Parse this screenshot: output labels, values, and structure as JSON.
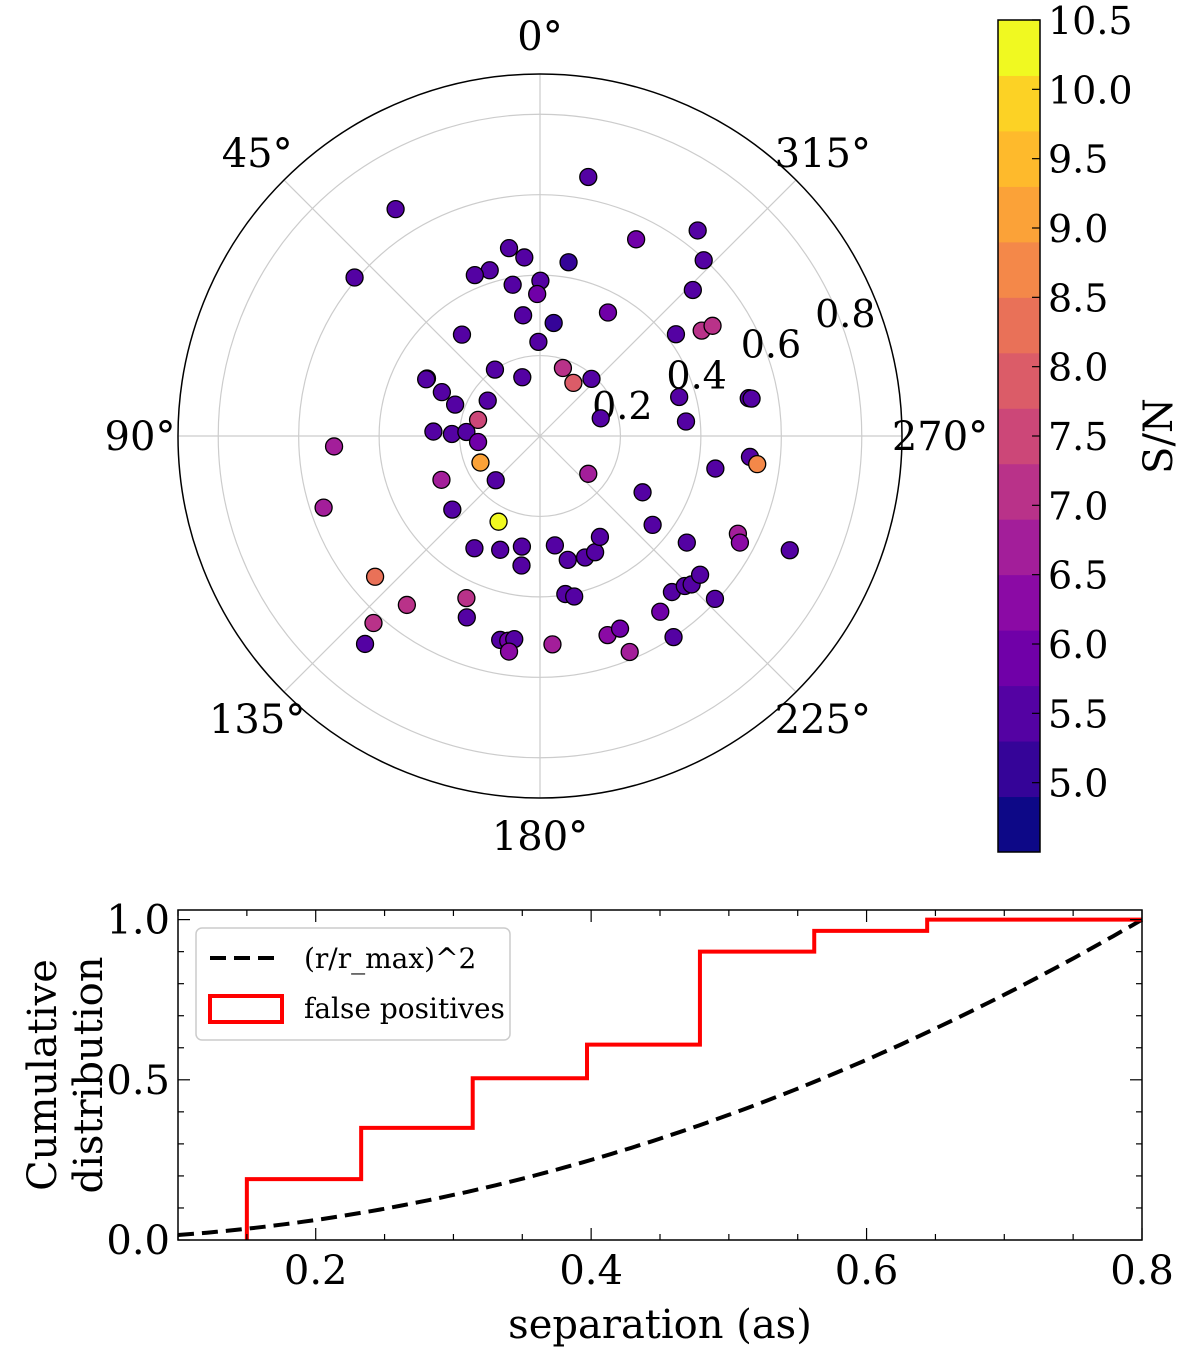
{
  "chart_data": [
    {
      "type": "scatter",
      "subtype": "polar",
      "title": "",
      "angle_direction": "counterclockwise",
      "theta_zero": "top",
      "angle_tick_labels": [
        "0°",
        "45°",
        "90°",
        "135°",
        "180°",
        "225°",
        "270°",
        "315°"
      ],
      "angle_ticks_deg": [
        0,
        45,
        90,
        135,
        180,
        225,
        270,
        315
      ],
      "radial_tick_labels": [
        "0.2",
        "0.4",
        "0.6",
        "0.8"
      ],
      "radial_ticks": [
        0.2,
        0.4,
        0.6,
        0.8
      ],
      "rlim": [
        0,
        0.9
      ],
      "grid": true,
      "colormap": "plasma",
      "colorbar": {
        "label": "S/N",
        "range": [
          4.5,
          10.5
        ],
        "tick_labels": [
          "5.0",
          "5.5",
          "6.0",
          "6.5",
          "7.0",
          "7.5",
          "8.0",
          "8.5",
          "9.0",
          "9.5",
          "10.0",
          "10.5"
        ],
        "ticks": [
          5.0,
          5.5,
          6.0,
          6.5,
          7.0,
          7.5,
          8.0,
          8.5,
          9.0,
          9.5,
          10.0,
          10.5
        ],
        "band_colors": [
          "#0d0887",
          "#350498",
          "#5402a3",
          "#7000a8",
          "#8b0aa5",
          "#a31e9a",
          "#b93289",
          "#cc4778",
          "#db5c68",
          "#e97158",
          "#f48849",
          "#fba238",
          "#feba2c",
          "#fcd225",
          "#f0f921"
        ]
      },
      "points": [
        {
          "x": 0.12,
          "y": 0.644,
          "snr": 5.4
        },
        {
          "x": 0.392,
          "y": 0.511,
          "snr": 5.5
        },
        {
          "x": 0.239,
          "y": 0.489,
          "snr": 6.1
        },
        {
          "x": -0.039,
          "y": 0.444,
          "snr": 5.4
        },
        {
          "x": -0.077,
          "y": 0.467,
          "snr": 5.4
        },
        {
          "x": -0.125,
          "y": 0.412,
          "snr": 5.4
        },
        {
          "x": -0.162,
          "y": 0.4,
          "snr": 5.5
        },
        {
          "x": 0.071,
          "y": 0.432,
          "snr": 5.3
        },
        {
          "x": 0.001,
          "y": 0.386,
          "snr": 5.4
        },
        {
          "x": -0.068,
          "y": 0.376,
          "snr": 5.4
        },
        {
          "x": -0.007,
          "y": 0.353,
          "snr": 6.0
        },
        {
          "x": -0.042,
          "y": 0.3,
          "snr": 5.5
        },
        {
          "x": 0.407,
          "y": 0.437,
          "snr": 5.5
        },
        {
          "x": 0.38,
          "y": 0.363,
          "snr": 5.4
        },
        {
          "x": -0.359,
          "y": 0.564,
          "snr": 5.4
        },
        {
          "x": -0.461,
          "y": 0.394,
          "snr": 5.4
        },
        {
          "x": -0.194,
          "y": 0.252,
          "snr": 5.5
        },
        {
          "x": 0.169,
          "y": 0.307,
          "snr": 5.8
        },
        {
          "x": 0.034,
          "y": 0.281,
          "snr": 5.3
        },
        {
          "x": -0.004,
          "y": 0.234,
          "snr": 5.4
        },
        {
          "x": 0.338,
          "y": 0.253,
          "snr": 5.4
        },
        {
          "x": 0.402,
          "y": 0.262,
          "snr": 7.3
        },
        {
          "x": 0.429,
          "y": 0.274,
          "snr": 7.2
        },
        {
          "x": -0.112,
          "y": 0.165,
          "snr": 5.4
        },
        {
          "x": -0.281,
          "y": 0.143,
          "snr": 5.4
        },
        {
          "x": -0.283,
          "y": 0.141,
          "snr": 5.4
        },
        {
          "x": -0.244,
          "y": 0.109,
          "snr": 5.5
        },
        {
          "x": -0.211,
          "y": 0.078,
          "snr": 5.4
        },
        {
          "x": -0.13,
          "y": 0.088,
          "snr": 5.4
        },
        {
          "x": -0.044,
          "y": 0.146,
          "snr": 5.4
        },
        {
          "x": 0.057,
          "y": 0.169,
          "snr": 7.0
        },
        {
          "x": 0.083,
          "y": 0.132,
          "snr": 7.9
        },
        {
          "x": 0.128,
          "y": 0.142,
          "snr": 5.4
        },
        {
          "x": 0.346,
          "y": 0.097,
          "snr": 5.4
        },
        {
          "x": 0.519,
          "y": 0.094,
          "snr": 5.4
        },
        {
          "x": 0.526,
          "y": 0.093,
          "snr": 5.4
        },
        {
          "x": -0.154,
          "y": 0.04,
          "snr": 7.4
        },
        {
          "x": -0.219,
          "y": 0.005,
          "snr": 5.4
        },
        {
          "x": -0.265,
          "y": 0.011,
          "snr": 5.4
        },
        {
          "x": -0.183,
          "y": 0.01,
          "snr": 5.5
        },
        {
          "x": -0.154,
          "y": -0.015,
          "snr": 6.0
        },
        {
          "x": 0.151,
          "y": 0.044,
          "snr": 5.4
        },
        {
          "x": 0.363,
          "y": 0.036,
          "snr": 5.5
        },
        {
          "x": 0.522,
          "y": -0.052,
          "snr": 5.4
        },
        {
          "x": 0.54,
          "y": -0.07,
          "snr": 8.6
        },
        {
          "x": 0.436,
          "y": -0.081,
          "snr": 5.4
        },
        {
          "x": -0.512,
          "y": -0.026,
          "snr": 6.8
        },
        {
          "x": -0.148,
          "y": -0.066,
          "snr": 8.9
        },
        {
          "x": -0.245,
          "y": -0.109,
          "snr": 6.7
        },
        {
          "x": -0.11,
          "y": -0.11,
          "snr": 5.4
        },
        {
          "x": 0.12,
          "y": -0.094,
          "snr": 6.5
        },
        {
          "x": 0.255,
          "y": -0.14,
          "snr": 5.4
        },
        {
          "x": -0.538,
          "y": -0.178,
          "snr": 6.8
        },
        {
          "x": -0.218,
          "y": -0.183,
          "snr": 5.4
        },
        {
          "x": -0.103,
          "y": -0.213,
          "snr": 10.4
        },
        {
          "x": -0.163,
          "y": -0.279,
          "snr": 5.5
        },
        {
          "x": -0.099,
          "y": -0.283,
          "snr": 5.4
        },
        {
          "x": -0.045,
          "y": -0.275,
          "snr": 5.5
        },
        {
          "x": 0.037,
          "y": -0.272,
          "snr": 5.4
        },
        {
          "x": 0.069,
          "y": -0.308,
          "snr": 5.4
        },
        {
          "x": 0.112,
          "y": -0.302,
          "snr": 5.4
        },
        {
          "x": 0.137,
          "y": -0.289,
          "snr": 5.4
        },
        {
          "x": 0.149,
          "y": -0.251,
          "snr": 5.5
        },
        {
          "x": -0.046,
          "y": -0.322,
          "snr": 5.4
        },
        {
          "x": 0.28,
          "y": -0.221,
          "snr": 5.4
        },
        {
          "x": 0.365,
          "y": -0.265,
          "snr": 5.4
        },
        {
          "x": 0.492,
          "y": -0.243,
          "snr": 6.5
        },
        {
          "x": 0.497,
          "y": -0.265,
          "snr": 6.2
        },
        {
          "x": 0.621,
          "y": -0.284,
          "snr": 5.4
        },
        {
          "x": -0.41,
          "y": -0.35,
          "snr": 8.3
        },
        {
          "x": -0.331,
          "y": -0.42,
          "snr": 7.3
        },
        {
          "x": -0.414,
          "y": -0.465,
          "snr": 7.2
        },
        {
          "x": -0.435,
          "y": -0.517,
          "snr": 5.4
        },
        {
          "x": -0.183,
          "y": -0.403,
          "snr": 7.0
        },
        {
          "x": -0.182,
          "y": -0.451,
          "snr": 5.4
        },
        {
          "x": -0.099,
          "y": -0.507,
          "snr": 5.4
        },
        {
          "x": -0.079,
          "y": -0.509,
          "snr": 6.0
        },
        {
          "x": -0.064,
          "y": -0.505,
          "snr": 5.4
        },
        {
          "x": -0.077,
          "y": -0.536,
          "snr": 6.2
        },
        {
          "x": 0.031,
          "y": -0.518,
          "snr": 6.5
        },
        {
          "x": 0.063,
          "y": -0.393,
          "snr": 5.4
        },
        {
          "x": 0.085,
          "y": -0.399,
          "snr": 5.4
        },
        {
          "x": 0.168,
          "y": -0.495,
          "snr": 6.4
        },
        {
          "x": 0.199,
          "y": -0.479,
          "snr": 5.8
        },
        {
          "x": 0.223,
          "y": -0.537,
          "snr": 6.5
        },
        {
          "x": 0.299,
          "y": -0.437,
          "snr": 5.8
        },
        {
          "x": 0.328,
          "y": -0.388,
          "snr": 5.5
        },
        {
          "x": 0.36,
          "y": -0.373,
          "snr": 5.4
        },
        {
          "x": 0.332,
          "y": -0.5,
          "snr": 5.4
        },
        {
          "x": 0.377,
          "y": -0.369,
          "snr": 5.4
        },
        {
          "x": 0.398,
          "y": -0.345,
          "snr": 5.4
        },
        {
          "x": 0.435,
          "y": -0.405,
          "snr": 5.4
        }
      ]
    },
    {
      "type": "line",
      "title": "",
      "xlabel": "separation (as)",
      "ylabel": "Cumulative\ndistribution",
      "xlim": [
        0.1,
        0.8
      ],
      "ylim": [
        0,
        1.03
      ],
      "x_tick_labels": [
        "0.2",
        "0.4",
        "0.6",
        "0.8"
      ],
      "x_ticks": [
        0.2,
        0.4,
        0.6,
        0.8
      ],
      "y_tick_labels": [
        "0.0",
        "0.5",
        "1.0"
      ],
      "y_ticks": [
        0.0,
        0.5,
        1.0
      ],
      "legend": "upper-left",
      "series": [
        {
          "name": "(r/r_max)^2",
          "style": "dashed",
          "color": "#000000",
          "formula": "(x/0.8)^2",
          "x": [
            0.1,
            0.2,
            0.3,
            0.4,
            0.5,
            0.6,
            0.7,
            0.8
          ],
          "values": [
            0.016,
            0.063,
            0.141,
            0.25,
            0.391,
            0.563,
            0.766,
            1.0
          ]
        },
        {
          "name": "false positives",
          "style": "step",
          "color": "#ff0000",
          "x": [
            0.15,
            0.233,
            0.314,
            0.397,
            0.479,
            0.562,
            0.644,
            0.8
          ],
          "values": [
            0.19,
            0.35,
            0.505,
            0.61,
            0.9,
            0.965,
            1.0,
            1.0
          ]
        }
      ]
    }
  ]
}
